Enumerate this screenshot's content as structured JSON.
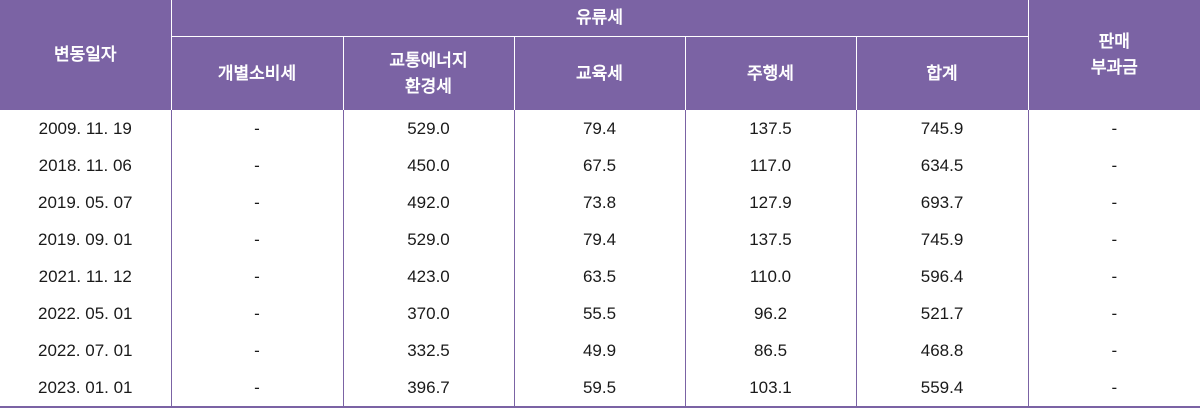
{
  "header": {
    "date_col": "변동일자",
    "group_label": "유류세",
    "sub_cols": [
      {
        "line1": "개별소비세",
        "line2": ""
      },
      {
        "line1": "교통에너지",
        "line2": "환경세"
      },
      {
        "line1": "교육세",
        "line2": ""
      },
      {
        "line1": "주행세",
        "line2": ""
      },
      {
        "line1": "합계",
        "line2": ""
      }
    ],
    "sales_col": {
      "line1": "판매",
      "line2": "부과금"
    }
  },
  "rows": [
    [
      "2009. 11. 19",
      "-",
      "529.0",
      "79.4",
      "137.5",
      "745.9",
      "-"
    ],
    [
      "2018. 11. 06",
      "-",
      "450.0",
      "67.5",
      "117.0",
      "634.5",
      "-"
    ],
    [
      "2019. 05. 07",
      "-",
      "492.0",
      "73.8",
      "127.9",
      "693.7",
      "-"
    ],
    [
      "2019. 09. 01",
      "-",
      "529.0",
      "79.4",
      "137.5",
      "745.9",
      "-"
    ],
    [
      "2021. 11. 12",
      "-",
      "423.0",
      "63.5",
      "110.0",
      "596.4",
      "-"
    ],
    [
      "2022. 05. 01",
      "-",
      "370.0",
      "55.5",
      "96.2",
      "521.7",
      "-"
    ],
    [
      "2022. 07. 01",
      "-",
      "332.5",
      "49.9",
      "86.5",
      "468.8",
      "-"
    ],
    [
      "2023. 01. 01",
      "-",
      "396.7",
      "59.5",
      "103.1",
      "559.4",
      "-"
    ]
  ],
  "colors": {
    "header_bg": "#7b63a4",
    "header_text": "#ffffff",
    "body_text": "#1a1a1a"
  }
}
